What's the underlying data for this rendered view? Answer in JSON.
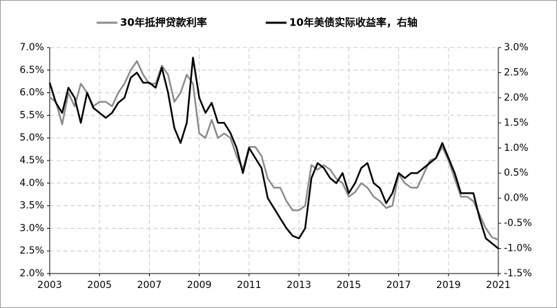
{
  "chart_data": {
    "type": "line",
    "x": [
      2003.0,
      2003.25,
      2003.5,
      2003.75,
      2004.0,
      2004.25,
      2004.5,
      2004.75,
      2005.0,
      2005.25,
      2005.5,
      2005.75,
      2006.0,
      2006.25,
      2006.5,
      2006.75,
      2007.0,
      2007.25,
      2007.5,
      2007.75,
      2008.0,
      2008.25,
      2008.5,
      2008.75,
      2009.0,
      2009.25,
      2009.5,
      2009.75,
      2010.0,
      2010.25,
      2010.5,
      2010.75,
      2011.0,
      2011.25,
      2011.5,
      2011.75,
      2012.0,
      2012.25,
      2012.5,
      2012.75,
      2013.0,
      2013.25,
      2013.5,
      2013.75,
      2014.0,
      2014.25,
      2014.5,
      2014.75,
      2015.0,
      2015.25,
      2015.5,
      2015.75,
      2016.0,
      2016.25,
      2016.5,
      2016.75,
      2017.0,
      2017.25,
      2017.5,
      2017.75,
      2018.0,
      2018.25,
      2018.5,
      2018.75,
      2019.0,
      2019.25,
      2019.5,
      2019.75,
      2020.0,
      2020.25,
      2020.5,
      2020.75,
      2021.0
    ],
    "series": [
      {
        "name": "30年抵押贷款利率",
        "color": "#8c8c8c",
        "values": [
          5.9,
          5.8,
          5.3,
          6.0,
          5.7,
          6.2,
          6.0,
          5.7,
          5.8,
          5.8,
          5.7,
          6.0,
          6.2,
          6.5,
          6.7,
          6.4,
          6.2,
          6.2,
          6.6,
          6.4,
          5.8,
          6.0,
          6.4,
          6.2,
          5.1,
          5.0,
          5.4,
          5.0,
          5.1,
          5.0,
          4.6,
          4.3,
          4.8,
          4.8,
          4.6,
          4.1,
          3.9,
          3.9,
          3.6,
          3.4,
          3.4,
          3.5,
          4.4,
          4.3,
          4.4,
          4.3,
          4.1,
          4.0,
          3.7,
          3.8,
          4.0,
          3.9,
          3.7,
          3.6,
          3.45,
          3.5,
          4.2,
          4.0,
          3.9,
          3.9,
          4.2,
          4.5,
          4.55,
          4.8,
          4.5,
          4.1,
          3.7,
          3.7,
          3.6,
          3.3,
          3.0,
          2.8,
          2.75
        ]
      },
      {
        "name": "10年美债实际收益率，右轴",
        "color": "#000000",
        "axis": "y2",
        "values": [
          2.3,
          1.9,
          1.7,
          2.2,
          2.0,
          1.5,
          2.1,
          1.8,
          1.7,
          1.6,
          1.7,
          1.9,
          2.0,
          2.4,
          2.5,
          2.3,
          2.3,
          2.2,
          2.6,
          2.1,
          1.4,
          1.1,
          1.5,
          2.8,
          2.0,
          1.7,
          1.9,
          1.5,
          1.5,
          1.3,
          1.0,
          0.5,
          1.0,
          0.8,
          0.6,
          0.0,
          -0.2,
          -0.4,
          -0.6,
          -0.75,
          -0.8,
          -0.6,
          0.4,
          0.7,
          0.6,
          0.4,
          0.3,
          0.5,
          0.1,
          0.3,
          0.6,
          0.7,
          0.3,
          0.2,
          -0.1,
          0.1,
          0.5,
          0.4,
          0.5,
          0.5,
          0.6,
          0.7,
          0.8,
          1.1,
          0.8,
          0.5,
          0.1,
          0.1,
          0.1,
          -0.4,
          -0.8,
          -0.9,
          -1.0
        ]
      }
    ],
    "xlim": [
      2003,
      2021
    ],
    "xticks": [
      2003,
      2005,
      2007,
      2009,
      2011,
      2013,
      2015,
      2017,
      2019,
      2021
    ],
    "ylim": [
      2.0,
      7.0
    ],
    "yticks": [
      {
        "value": 2.0,
        "label": "2.0%"
      },
      {
        "value": 2.5,
        "label": "2.5%"
      },
      {
        "value": 3.0,
        "label": "3.0%"
      },
      {
        "value": 3.5,
        "label": "3.5%"
      },
      {
        "value": 4.0,
        "label": "4.0%"
      },
      {
        "value": 4.5,
        "label": "4.5%"
      },
      {
        "value": 5.0,
        "label": "5.0%"
      },
      {
        "value": 5.5,
        "label": "5.5%"
      },
      {
        "value": 6.0,
        "label": "6.0%"
      },
      {
        "value": 6.5,
        "label": "6.5%"
      },
      {
        "value": 7.0,
        "label": "7.0%"
      }
    ],
    "y2lim": [
      -1.5,
      3.0
    ],
    "y2ticks": [
      {
        "value": -1.5,
        "label": "-1.5%"
      },
      {
        "value": -1.0,
        "label": "-1.0%"
      },
      {
        "value": -0.5,
        "label": "-0.5%"
      },
      {
        "value": 0.0,
        "label": "0.0%"
      },
      {
        "value": 0.5,
        "label": "0.5%"
      },
      {
        "value": 1.0,
        "label": "1.0%"
      },
      {
        "value": 1.5,
        "label": "1.5%"
      },
      {
        "value": 2.0,
        "label": "2.0%"
      },
      {
        "value": 2.5,
        "label": "2.5%"
      },
      {
        "value": 3.0,
        "label": "3.0%"
      }
    ],
    "grid": true
  }
}
